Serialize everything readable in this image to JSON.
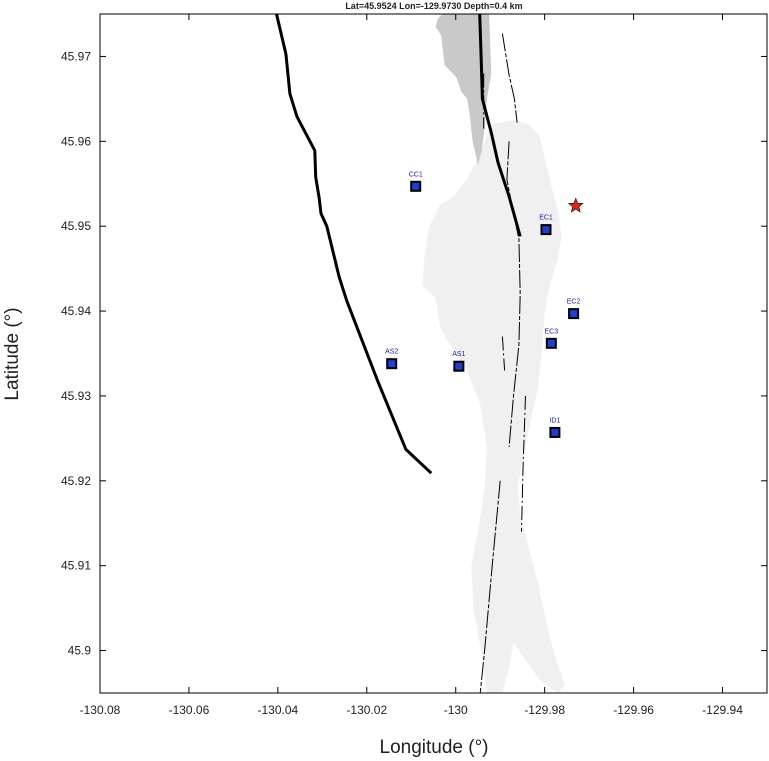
{
  "title": "Lat=45.9524  Lon=-129.9730  Depth=0.4 km",
  "x_axis": {
    "label": "Longitude (°)",
    "range": [
      -130.08,
      -129.93
    ],
    "ticks": [
      -130.08,
      -130.06,
      -130.04,
      -130.02,
      -130.0,
      -129.98,
      -129.96,
      -129.94
    ],
    "tick_labels": [
      "-130.08",
      "-130.06",
      "-130.04",
      "-130.02",
      "-130",
      "-129.98",
      "-129.96",
      "-129.94"
    ]
  },
  "y_axis": {
    "label": "Latitude (°)",
    "range": [
      45.895,
      45.975
    ],
    "ticks": [
      45.9,
      45.91,
      45.92,
      45.93,
      45.94,
      45.95,
      45.96,
      45.97
    ],
    "tick_labels": [
      "45.9",
      "45.91",
      "45.92",
      "45.93",
      "45.94",
      "45.95",
      "45.96",
      "45.97"
    ]
  },
  "colors": {
    "lava_light": "#f0f0f0",
    "lava_dark": "#c9c9c9",
    "station_fill": "#1f3fd1",
    "station_label": "#1a1aa8",
    "event_star": "#e8201a",
    "line": "#000000"
  },
  "event": {
    "lat": 45.9524,
    "lon": -129.973,
    "depth_km": 0.4,
    "marker": "red-star-icon"
  },
  "stations": [
    {
      "name": "CC1",
      "lon": -130.009,
      "lat": 45.9547
    },
    {
      "name": "EC1",
      "lon": -129.9797,
      "lat": 45.9496
    },
    {
      "name": "EC2",
      "lon": -129.9735,
      "lat": 45.9397
    },
    {
      "name": "EC3",
      "lon": -129.9785,
      "lat": 45.9362
    },
    {
      "name": "AS2",
      "lon": -130.0144,
      "lat": 45.9338
    },
    {
      "name": "AS1",
      "lon": -129.9993,
      "lat": 45.9335
    },
    {
      "name": "ID1",
      "lon": -129.9777,
      "lat": 45.9257
    }
  ],
  "caldera_rim_west": [
    [
      -130.0403,
      45.975
    ],
    [
      -130.0382,
      45.9703
    ],
    [
      -130.0373,
      45.9656
    ],
    [
      -130.0357,
      45.9629
    ],
    [
      -130.0317,
      45.9589
    ],
    [
      -130.0315,
      45.9558
    ],
    [
      -130.0307,
      45.9533
    ],
    [
      -130.0303,
      45.9515
    ],
    [
      -130.029,
      45.95
    ],
    [
      -130.0262,
      45.944
    ],
    [
      -130.0245,
      45.9412
    ],
    [
      -130.0175,
      45.9317
    ],
    [
      -130.0112,
      45.9237
    ],
    [
      -130.0055,
      45.9209
    ]
  ],
  "caldera_rim_east": [
    [
      -129.9946,
      45.975
    ],
    [
      -129.9943,
      45.97
    ],
    [
      -129.994,
      45.965
    ],
    [
      -129.992,
      45.961
    ],
    [
      -129.9905,
      45.9575
    ],
    [
      -129.988,
      45.9535
    ],
    [
      -129.9855,
      45.9488
    ]
  ],
  "fissures": [
    [
      [
        -129.9895,
        45.9727
      ],
      [
        -129.988,
        45.9678
      ],
      [
        -129.9868,
        45.965
      ],
      [
        -129.9862,
        45.9622
      ]
    ],
    [
      [
        -129.9937,
        45.968
      ],
      [
        -129.9937,
        45.9615
      ]
    ],
    [
      [
        -129.988,
        45.96
      ],
      [
        -129.9885,
        45.9555
      ],
      [
        -129.9872,
        45.952
      ],
      [
        -129.9858,
        45.9485
      ],
      [
        -129.9855,
        45.942
      ],
      [
        -129.9858,
        45.936
      ],
      [
        -129.987,
        45.93
      ],
      [
        -129.988,
        45.924
      ]
    ],
    [
      [
        -129.9843,
        45.93
      ],
      [
        -129.9849,
        45.921
      ],
      [
        -129.9852,
        45.914
      ]
    ],
    [
      [
        -129.99,
        45.92
      ],
      [
        -129.9918,
        45.91
      ],
      [
        -129.9935,
        45.9
      ],
      [
        -129.9945,
        45.895
      ]
    ],
    [
      [
        -129.9895,
        45.937
      ],
      [
        -129.989,
        45.933
      ]
    ]
  ],
  "lava_flow_dark": [
    [
      -130.002,
      45.975
    ],
    [
      -129.9925,
      45.975
    ],
    [
      -129.992,
      45.968
    ],
    [
      -129.993,
      45.965
    ],
    [
      -129.9935,
      45.9615
    ],
    [
      -129.9942,
      45.9588
    ],
    [
      -129.995,
      45.9572
    ],
    [
      -129.9962,
      45.96
    ],
    [
      -129.9968,
      45.9628
    ],
    [
      -129.9974,
      45.965
    ],
    [
      -129.9987,
      45.9658
    ],
    [
      -129.9998,
      45.9675
    ],
    [
      -130.0025,
      45.969
    ],
    [
      -130.003,
      45.9712
    ],
    [
      -130.0033,
      45.9725
    ],
    [
      -130.0045,
      45.9735
    ],
    [
      -130.004,
      45.9745
    ],
    [
      -130.003,
      45.975
    ]
  ],
  "lava_flow_light": [
    [
      -129.992,
      45.962
    ],
    [
      -129.987,
      45.9625
    ],
    [
      -129.9835,
      45.962
    ],
    [
      -129.981,
      45.9605
    ],
    [
      -129.98,
      45.958
    ],
    [
      -129.9785,
      45.9548
    ],
    [
      -129.977,
      45.9518
    ],
    [
      -129.9762,
      45.9488
    ],
    [
      -129.9772,
      45.9458
    ],
    [
      -129.979,
      45.9428
    ],
    [
      -129.98,
      45.9398
    ],
    [
      -129.9805,
      45.936
    ],
    [
      -129.9815,
      45.931
    ],
    [
      -129.984,
      45.925
    ],
    [
      -129.986,
      45.9195
    ],
    [
      -129.9855,
      45.916
    ],
    [
      -129.984,
      45.913
    ],
    [
      -129.9815,
      45.908
    ],
    [
      -129.9795,
      45.903
    ],
    [
      -129.9775,
      45.899
    ],
    [
      -129.9755,
      45.896
    ],
    [
      -129.977,
      45.895
    ],
    [
      -129.981,
      45.8965
    ],
    [
      -129.9845,
      45.899
    ],
    [
      -129.987,
      45.901
    ],
    [
      -129.988,
      45.898
    ],
    [
      -129.9895,
      45.895
    ],
    [
      -129.993,
      45.895
    ],
    [
      -129.994,
      45.899
    ],
    [
      -129.996,
      45.905
    ],
    [
      -129.9965,
      45.91
    ],
    [
      -129.995,
      45.914
    ],
    [
      -129.9935,
      45.919
    ],
    [
      -129.993,
      45.924
    ],
    [
      -129.9945,
      45.929
    ],
    [
      -129.9975,
      45.933
    ],
    [
      -130.0,
      45.935
    ],
    [
      -130.0035,
      45.938
    ],
    [
      -130.0045,
      45.9415
    ],
    [
      -130.0075,
      45.943
    ],
    [
      -130.007,
      45.9465
    ],
    [
      -130.006,
      45.95
    ],
    [
      -130.0035,
      45.9525
    ],
    [
      -130.0005,
      45.9535
    ],
    [
      -129.9975,
      45.9555
    ],
    [
      -129.9955,
      45.9575
    ],
    [
      -129.9935,
      45.96
    ]
  ]
}
